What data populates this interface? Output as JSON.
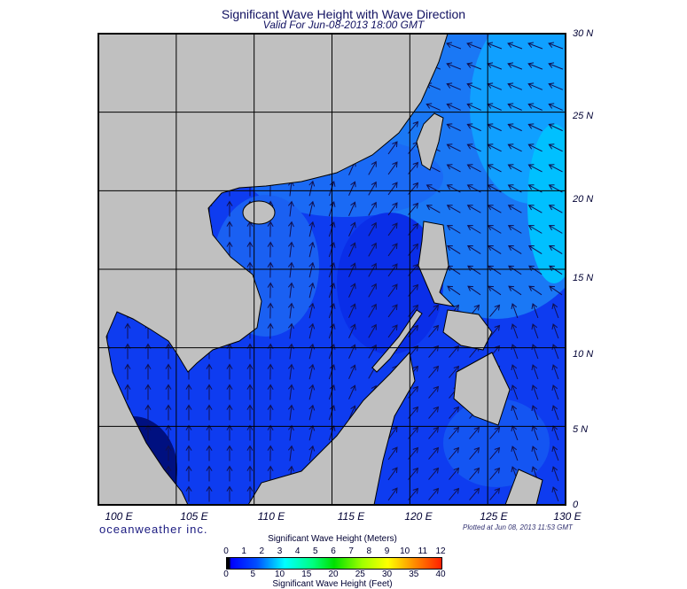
{
  "title": "Significant Wave Height with Wave Direction",
  "subtitle": "Valid For Jun-08-2013 18:00 GMT",
  "map": {
    "region": "South China Sea",
    "lon_range": [
      100,
      130
    ],
    "lat_range": [
      0,
      30
    ],
    "lon_labels": [
      "100 E",
      "105 E",
      "110 E",
      "115 E",
      "120 E",
      "125 E",
      "130 E"
    ],
    "lat_labels": [
      "30 N",
      "25 N",
      "20 N",
      "15 N",
      "10 N",
      "5 N",
      "0"
    ],
    "colors": {
      "land": "#c0c0c0",
      "ocean_low": "#0a30ee",
      "ocean_mid": "#1a6af5",
      "ocean_high": "#00b8ff",
      "arrow": "#101050"
    }
  },
  "brand": "oceanweather inc.",
  "plotted": "Plotted at Jun 08, 2013 11:53 GMT",
  "colorbar": {
    "title_meters": "Significant Wave Height (Meters)",
    "title_feet": "Significant Wave Height (Feet)",
    "meters_ticks": [
      "0",
      "1",
      "2",
      "3",
      "4",
      "5",
      "6",
      "7",
      "8",
      "9",
      "10",
      "11",
      "12"
    ],
    "feet_ticks": [
      "0",
      "5",
      "10",
      "15",
      "20",
      "25",
      "30",
      "35",
      "40"
    ]
  }
}
